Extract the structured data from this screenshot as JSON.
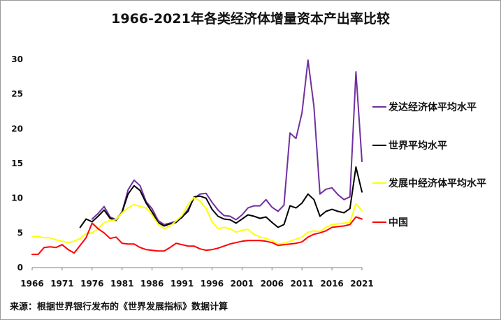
{
  "chart_data": {
    "type": "line",
    "title": "1966-2021年各类经济体增量资本产出率比较",
    "source": "来源：根据世界银行发布的《世界发展指标》数据计算",
    "xlabel": "",
    "ylabel": "",
    "xlim": [
      1966,
      2021
    ],
    "ylim": [
      0,
      30
    ],
    "x_ticks": [
      "1966",
      "1971",
      "1976",
      "1981",
      "1986",
      "1991",
      "1996",
      "2001",
      "2006",
      "2011",
      "2016",
      "2021"
    ],
    "y_ticks": [
      "0",
      "5",
      "10",
      "15",
      "20",
      "25",
      "30"
    ],
    "grid": false,
    "legend_position": "right",
    "series": [
      {
        "name": "发达经济体平均水平",
        "color": "#7030A0",
        "start_year": 1976,
        "values": [
          7.0,
          7.8,
          8.8,
          7.3,
          6.9,
          8.0,
          11.2,
          12.6,
          11.8,
          9.5,
          8.5,
          6.8,
          6.2,
          6.4,
          6.7,
          7.2,
          8.4,
          10.0,
          10.6,
          10.7,
          9.4,
          8.3,
          7.5,
          7.4,
          6.9,
          7.6,
          8.6,
          8.9,
          8.9,
          9.8,
          8.7,
          8.1,
          9.0,
          19.4,
          18.6,
          22.3,
          29.9,
          23.2,
          10.6,
          11.3,
          11.5,
          10.5,
          9.8,
          10.2,
          28.2,
          15.3
        ]
      },
      {
        "name": "世界平均水平",
        "color": "#000000",
        "start_year": 1974,
        "values": [
          5.8,
          7.0,
          6.6,
          7.4,
          8.3,
          7.1,
          6.8,
          8.0,
          10.6,
          11.8,
          11.1,
          9.3,
          8.0,
          6.5,
          6.0,
          6.3,
          6.5,
          7.3,
          8.1,
          10.2,
          10.3,
          10.0,
          8.4,
          7.4,
          7.0,
          6.9,
          6.4,
          7.0,
          7.6,
          7.4,
          7.1,
          7.3,
          6.5,
          5.8,
          6.2,
          8.9,
          8.6,
          9.3,
          10.6,
          9.8,
          7.4,
          8.1,
          8.4,
          8.1,
          7.9,
          8.5,
          14.5,
          10.9
        ]
      },
      {
        "name": "发展中经济体平均水平",
        "color": "#FFFF00",
        "start_year": 1966,
        "values": [
          4.4,
          4.5,
          4.3,
          4.3,
          4.0,
          3.8,
          3.6,
          3.8,
          4.2,
          4.9,
          5.0,
          5.6,
          6.5,
          6.8,
          6.9,
          7.9,
          8.6,
          9.1,
          8.8,
          8.6,
          7.6,
          6.3,
          5.6,
          6.0,
          6.7,
          7.5,
          9.1,
          10.1,
          9.6,
          8.5,
          6.6,
          5.6,
          5.8,
          5.6,
          5.1,
          5.4,
          5.5,
          4.8,
          4.4,
          4.2,
          3.9,
          3.4,
          3.5,
          3.8,
          4.1,
          4.4,
          5.1,
          5.3,
          5.2,
          5.8,
          6.2,
          6.3,
          6.4,
          6.5,
          9.2,
          8.2
        ]
      },
      {
        "name": "中国",
        "color": "#FF0000",
        "start_year": 1966,
        "values": [
          1.9,
          1.9,
          2.9,
          3.0,
          2.9,
          3.3,
          2.6,
          2.1,
          3.2,
          4.3,
          6.4,
          5.6,
          5.0,
          4.2,
          4.4,
          3.5,
          3.4,
          3.4,
          2.9,
          2.6,
          2.5,
          2.4,
          2.4,
          2.9,
          3.5,
          3.3,
          3.1,
          3.1,
          2.7,
          2.5,
          2.6,
          2.8,
          3.1,
          3.4,
          3.6,
          3.8,
          3.9,
          3.9,
          3.9,
          3.8,
          3.6,
          3.2,
          3.3,
          3.4,
          3.5,
          3.7,
          4.4,
          4.8,
          5.0,
          5.3,
          5.8,
          5.9,
          6.0,
          6.2,
          7.3,
          7.0
        ]
      }
    ]
  }
}
